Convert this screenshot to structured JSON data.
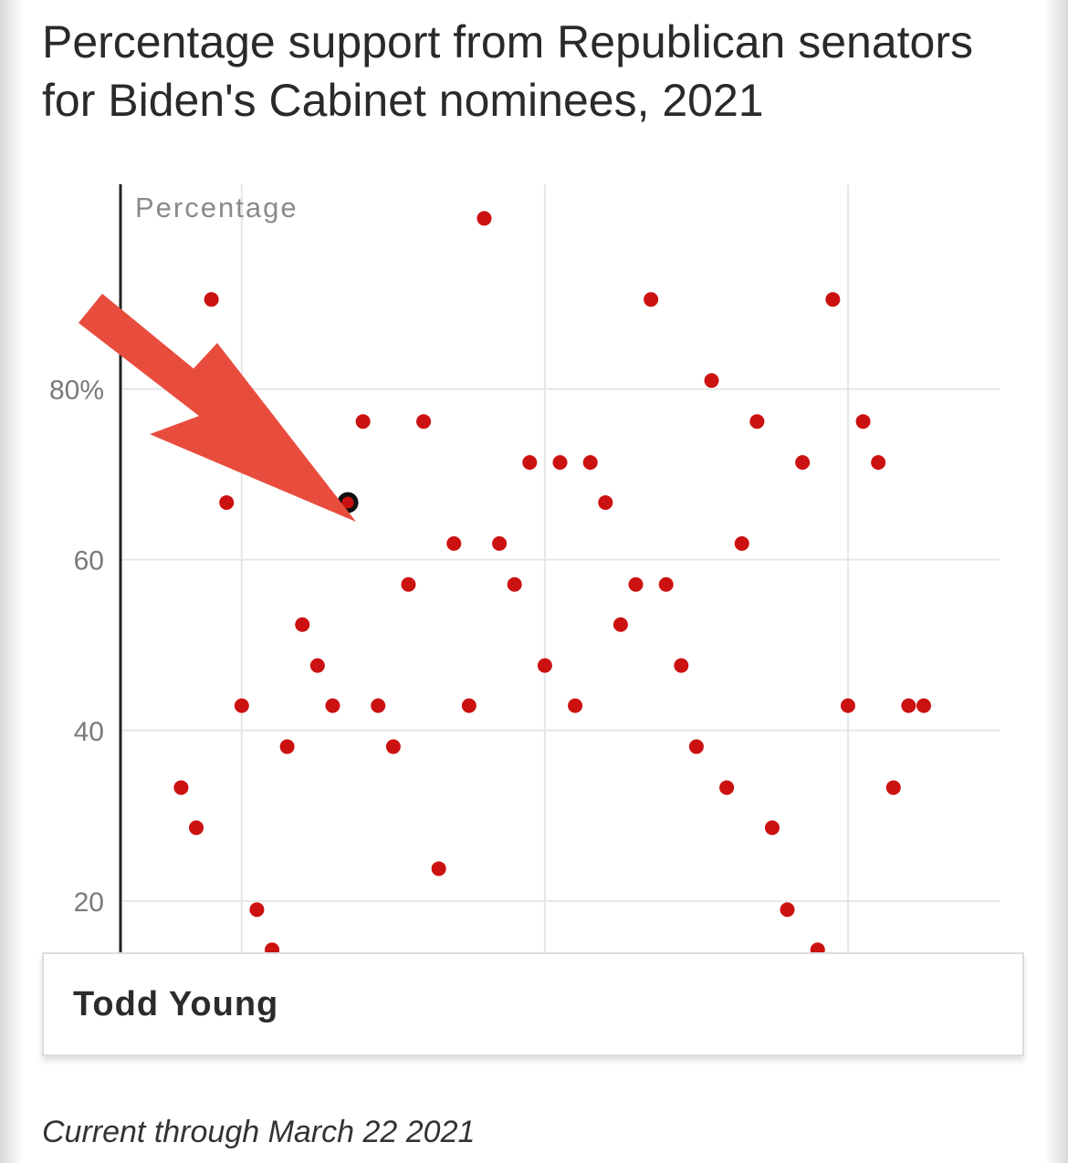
{
  "title": "Percentage support from Republican senators for Biden's Cabinet nominees, 2021",
  "tooltip": {
    "name": "Todd Young"
  },
  "footnote": "Current through March 22 2021",
  "annotation": {
    "type": "red-arrow",
    "points_to": "Todd Young"
  },
  "colors": {
    "dot": "#cc1111",
    "highlight_stroke": "#111111",
    "arrow": "#e84c3d",
    "grid": "#e6e6e6"
  },
  "chart_data": {
    "type": "scatter",
    "title": "Percentage support from Republican senators for Biden's Cabinet nominees, 2021",
    "ylabel": "Percentage",
    "xlabel": "",
    "ylim": [
      14,
      104
    ],
    "xlim": [
      -3,
      55
    ],
    "yticks": [
      20,
      40,
      60,
      80
    ],
    "ytick_labels": [
      "20",
      "40",
      "60",
      "80%"
    ],
    "highlighted_index": 11,
    "x": [
      1,
      2,
      3,
      4,
      5,
      6,
      7,
      8,
      9,
      10,
      11,
      12,
      13,
      14,
      15,
      16,
      17,
      18,
      19,
      20,
      21,
      22,
      23,
      24,
      25,
      26,
      27,
      28,
      29,
      30,
      31,
      32,
      33,
      34,
      35,
      36,
      37,
      38,
      39,
      40,
      41,
      42,
      43,
      44,
      45,
      46,
      47,
      48,
      49,
      50
    ],
    "y": [
      33.3,
      28.6,
      90.5,
      66.7,
      42.9,
      19.0,
      14.3,
      38.1,
      52.4,
      47.6,
      42.9,
      66.7,
      76.2,
      42.9,
      38.1,
      57.1,
      76.2,
      23.8,
      61.9,
      42.9,
      100.0,
      61.9,
      57.1,
      71.4,
      47.6,
      71.4,
      42.9,
      71.4,
      66.7,
      52.4,
      57.1,
      90.5,
      57.1,
      47.6,
      38.1,
      81.0,
      33.3,
      61.9,
      76.2,
      28.6,
      19.0,
      71.4,
      14.3,
      90.5,
      42.9,
      76.2,
      71.4,
      33.3,
      42.9,
      42.9
    ]
  }
}
